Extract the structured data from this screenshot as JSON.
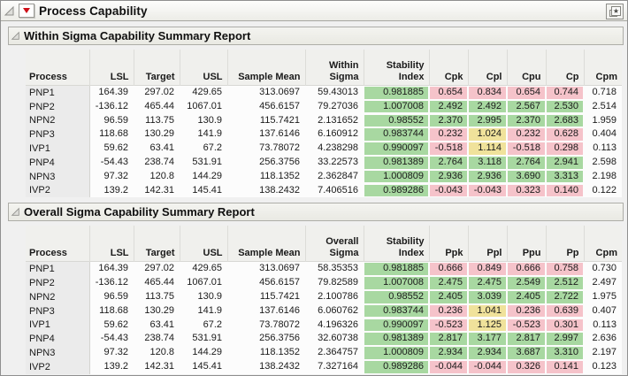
{
  "window": {
    "title": "Process Capability"
  },
  "icons": {
    "menu_button": "red-triangle-menu-icon",
    "disclosure": "disclosure-open-icon",
    "bookmark": "star-bookmark-icon"
  },
  "colors": {
    "highlight_green": "#A8D8A1",
    "highlight_pink": "#F5C3CA",
    "highlight_yellow": "#F0E29B",
    "red_triangle": "#CE0E17"
  },
  "tables": [
    {
      "title": "Within Sigma Capability Summary Report",
      "columns": [
        {
          "key": "process",
          "lines": [
            "Process"
          ],
          "width": 72,
          "align": "left"
        },
        {
          "key": "lsl",
          "lines": [
            "LSL"
          ],
          "width": 50,
          "align": "right"
        },
        {
          "key": "target",
          "lines": [
            "Target"
          ],
          "width": 52,
          "align": "right"
        },
        {
          "key": "usl",
          "lines": [
            "USL"
          ],
          "width": 54,
          "align": "right"
        },
        {
          "key": "sample-mean",
          "lines": [
            "Sample Mean"
          ],
          "width": 88,
          "align": "right"
        },
        {
          "key": "within-sigma",
          "lines": [
            "Within",
            "Sigma"
          ],
          "width": 66,
          "align": "right"
        },
        {
          "key": "stability-index",
          "lines": [
            "Stability",
            "Index"
          ],
          "width": 74,
          "align": "right"
        },
        {
          "key": "cpk",
          "lines": [
            "Cpk"
          ],
          "width": 44,
          "align": "right"
        },
        {
          "key": "cpl",
          "lines": [
            "Cpl"
          ],
          "width": 44,
          "align": "right"
        },
        {
          "key": "cpu",
          "lines": [
            "Cpu"
          ],
          "width": 44,
          "align": "right"
        },
        {
          "key": "cp",
          "lines": [
            "Cp"
          ],
          "width": 43,
          "align": "right"
        },
        {
          "key": "cpm",
          "lines": [
            "Cpm"
          ],
          "width": 43,
          "align": "right"
        }
      ],
      "rows": [
        {
          "cells": [
            "PNP1",
            "164.39",
            "297.02",
            "429.65",
            "313.0697",
            "59.43013",
            "0.981885",
            "0.654",
            "0.834",
            "0.654",
            "0.744",
            "0.718"
          ],
          "hl": [
            null,
            null,
            null,
            null,
            null,
            null,
            "g",
            "p",
            "p",
            "p",
            "p",
            null
          ]
        },
        {
          "cells": [
            "PNP2",
            "-136.12",
            "465.44",
            "1067.01",
            "456.6157",
            "79.27036",
            "1.007008",
            "2.492",
            "2.492",
            "2.567",
            "2.530",
            "2.514"
          ],
          "hl": [
            null,
            null,
            null,
            null,
            null,
            null,
            "g",
            "g",
            "g",
            "g",
            "g",
            null
          ]
        },
        {
          "cells": [
            "NPN2",
            "96.59",
            "113.75",
            "130.9",
            "115.7421",
            "2.131652",
            "0.98552",
            "2.370",
            "2.995",
            "2.370",
            "2.683",
            "1.959"
          ],
          "hl": [
            null,
            null,
            null,
            null,
            null,
            null,
            "g",
            "g",
            "g",
            "g",
            "g",
            null
          ]
        },
        {
          "cells": [
            "PNP3",
            "118.68",
            "130.29",
            "141.9",
            "137.6146",
            "6.160912",
            "0.983744",
            "0.232",
            "1.024",
            "0.232",
            "0.628",
            "0.404"
          ],
          "hl": [
            null,
            null,
            null,
            null,
            null,
            null,
            "g",
            "p",
            "y",
            "p",
            "p",
            null
          ]
        },
        {
          "cells": [
            "IVP1",
            "59.62",
            "63.41",
            "67.2",
            "73.78072",
            "4.238298",
            "0.990097",
            "-0.518",
            "1.114",
            "-0.518",
            "0.298",
            "0.113"
          ],
          "hl": [
            null,
            null,
            null,
            null,
            null,
            null,
            "g",
            "p",
            "y",
            "p",
            "p",
            null
          ]
        },
        {
          "cells": [
            "PNP4",
            "-54.43",
            "238.74",
            "531.91",
            "256.3756",
            "33.22573",
            "0.981389",
            "2.764",
            "3.118",
            "2.764",
            "2.941",
            "2.598"
          ],
          "hl": [
            null,
            null,
            null,
            null,
            null,
            null,
            "g",
            "g",
            "g",
            "g",
            "g",
            null
          ]
        },
        {
          "cells": [
            "NPN3",
            "97.32",
            "120.8",
            "144.29",
            "118.1352",
            "2.362847",
            "1.000809",
            "2.936",
            "2.936",
            "3.690",
            "3.313",
            "2.198"
          ],
          "hl": [
            null,
            null,
            null,
            null,
            null,
            null,
            "g",
            "g",
            "g",
            "g",
            "g",
            null
          ]
        },
        {
          "cells": [
            "IVP2",
            "139.2",
            "142.31",
            "145.41",
            "138.2432",
            "7.406516",
            "0.989286",
            "-0.043",
            "-0.043",
            "0.323",
            "0.140",
            "0.122"
          ],
          "hl": [
            null,
            null,
            null,
            null,
            null,
            null,
            "g",
            "p",
            "p",
            "p",
            "p",
            null
          ]
        }
      ]
    },
    {
      "title": "Overall Sigma Capability Summary Report",
      "columns": [
        {
          "key": "process",
          "lines": [
            "Process"
          ],
          "width": 72,
          "align": "left"
        },
        {
          "key": "lsl",
          "lines": [
            "LSL"
          ],
          "width": 50,
          "align": "right"
        },
        {
          "key": "target",
          "lines": [
            "Target"
          ],
          "width": 52,
          "align": "right"
        },
        {
          "key": "usl",
          "lines": [
            "USL"
          ],
          "width": 54,
          "align": "right"
        },
        {
          "key": "sample-mean",
          "lines": [
            "Sample Mean"
          ],
          "width": 88,
          "align": "right"
        },
        {
          "key": "overall-sigma",
          "lines": [
            "Overall",
            "Sigma"
          ],
          "width": 66,
          "align": "right"
        },
        {
          "key": "stability-index",
          "lines": [
            "Stability",
            "Index"
          ],
          "width": 74,
          "align": "right"
        },
        {
          "key": "ppk",
          "lines": [
            "Ppk"
          ],
          "width": 44,
          "align": "right"
        },
        {
          "key": "ppl",
          "lines": [
            "Ppl"
          ],
          "width": 44,
          "align": "right"
        },
        {
          "key": "ppu",
          "lines": [
            "Ppu"
          ],
          "width": 44,
          "align": "right"
        },
        {
          "key": "pp",
          "lines": [
            "Pp"
          ],
          "width": 43,
          "align": "right"
        },
        {
          "key": "cpm",
          "lines": [
            "Cpm"
          ],
          "width": 43,
          "align": "right"
        }
      ],
      "rows": [
        {
          "cells": [
            "PNP1",
            "164.39",
            "297.02",
            "429.65",
            "313.0697",
            "58.35353",
            "0.981885",
            "0.666",
            "0.849",
            "0.666",
            "0.758",
            "0.730"
          ],
          "hl": [
            null,
            null,
            null,
            null,
            null,
            null,
            "g",
            "p",
            "p",
            "p",
            "p",
            null
          ]
        },
        {
          "cells": [
            "PNP2",
            "-136.12",
            "465.44",
            "1067.01",
            "456.6157",
            "79.82589",
            "1.007008",
            "2.475",
            "2.475",
            "2.549",
            "2.512",
            "2.497"
          ],
          "hl": [
            null,
            null,
            null,
            null,
            null,
            null,
            "g",
            "g",
            "g",
            "g",
            "g",
            null
          ]
        },
        {
          "cells": [
            "NPN2",
            "96.59",
            "113.75",
            "130.9",
            "115.7421",
            "2.100786",
            "0.98552",
            "2.405",
            "3.039",
            "2.405",
            "2.722",
            "1.975"
          ],
          "hl": [
            null,
            null,
            null,
            null,
            null,
            null,
            "g",
            "g",
            "g",
            "g",
            "g",
            null
          ]
        },
        {
          "cells": [
            "PNP3",
            "118.68",
            "130.29",
            "141.9",
            "137.6146",
            "6.060762",
            "0.983744",
            "0.236",
            "1.041",
            "0.236",
            "0.639",
            "0.407"
          ],
          "hl": [
            null,
            null,
            null,
            null,
            null,
            null,
            "g",
            "p",
            "y",
            "p",
            "p",
            null
          ]
        },
        {
          "cells": [
            "IVP1",
            "59.62",
            "63.41",
            "67.2",
            "73.78072",
            "4.196326",
            "0.990097",
            "-0.523",
            "1.125",
            "-0.523",
            "0.301",
            "0.113"
          ],
          "hl": [
            null,
            null,
            null,
            null,
            null,
            null,
            "g",
            "p",
            "y",
            "p",
            "p",
            null
          ]
        },
        {
          "cells": [
            "PNP4",
            "-54.43",
            "238.74",
            "531.91",
            "256.3756",
            "32.60738",
            "0.981389",
            "2.817",
            "3.177",
            "2.817",
            "2.997",
            "2.636"
          ],
          "hl": [
            null,
            null,
            null,
            null,
            null,
            null,
            "g",
            "g",
            "g",
            "g",
            "g",
            null
          ]
        },
        {
          "cells": [
            "NPN3",
            "97.32",
            "120.8",
            "144.29",
            "118.1352",
            "2.364757",
            "1.000809",
            "2.934",
            "2.934",
            "3.687",
            "3.310",
            "2.197"
          ],
          "hl": [
            null,
            null,
            null,
            null,
            null,
            null,
            "g",
            "g",
            "g",
            "g",
            "g",
            null
          ]
        },
        {
          "cells": [
            "IVP2",
            "139.2",
            "142.31",
            "145.41",
            "138.2432",
            "7.327164",
            "0.989286",
            "-0.044",
            "-0.044",
            "0.326",
            "0.141",
            "0.123"
          ],
          "hl": [
            null,
            null,
            null,
            null,
            null,
            null,
            "g",
            "p",
            "p",
            "p",
            "p",
            null
          ]
        }
      ]
    }
  ]
}
